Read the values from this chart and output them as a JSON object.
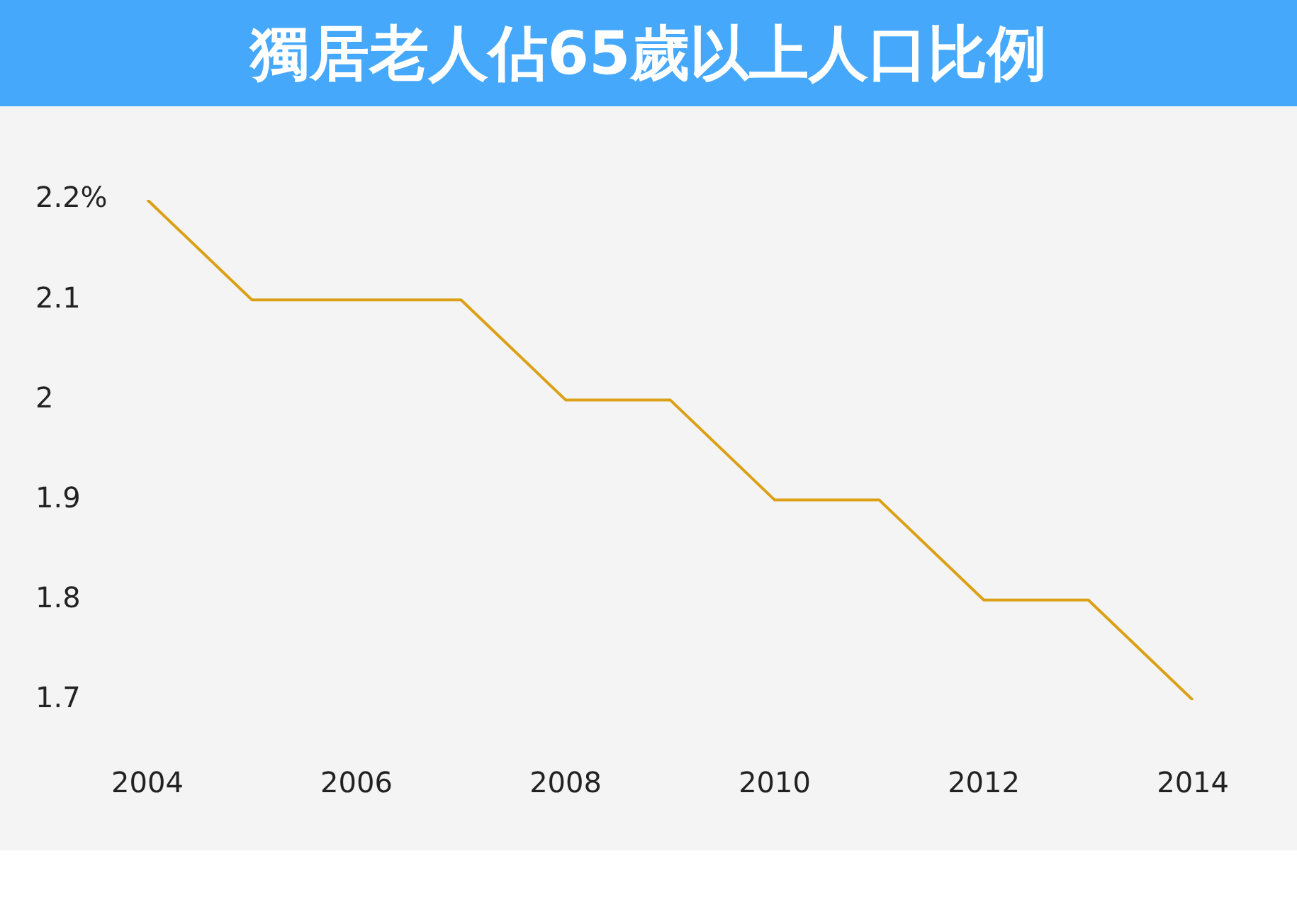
{
  "chart_data": {
    "type": "line",
    "title": "獨居老人佔65歲以上人口比例",
    "categories": [
      "2004",
      null,
      "2006",
      null,
      "2008",
      null,
      "2010",
      null,
      "2012",
      null,
      "2014"
    ],
    "series": [
      {
        "color": "#dba015",
        "values": [
          2.2,
          2.1,
          2.1,
          2.1,
          2.0,
          2.0,
          1.9,
          1.9,
          1.8,
          1.8,
          1.7
        ]
      }
    ],
    "ylim": [
      1.7,
      2.2
    ],
    "yticks": [
      1.7,
      1.8,
      1.9,
      2,
      2.1,
      {
        "value": 2.2,
        "label": "2.2%"
      }
    ],
    "grid": false,
    "line_style": "solid"
  }
}
